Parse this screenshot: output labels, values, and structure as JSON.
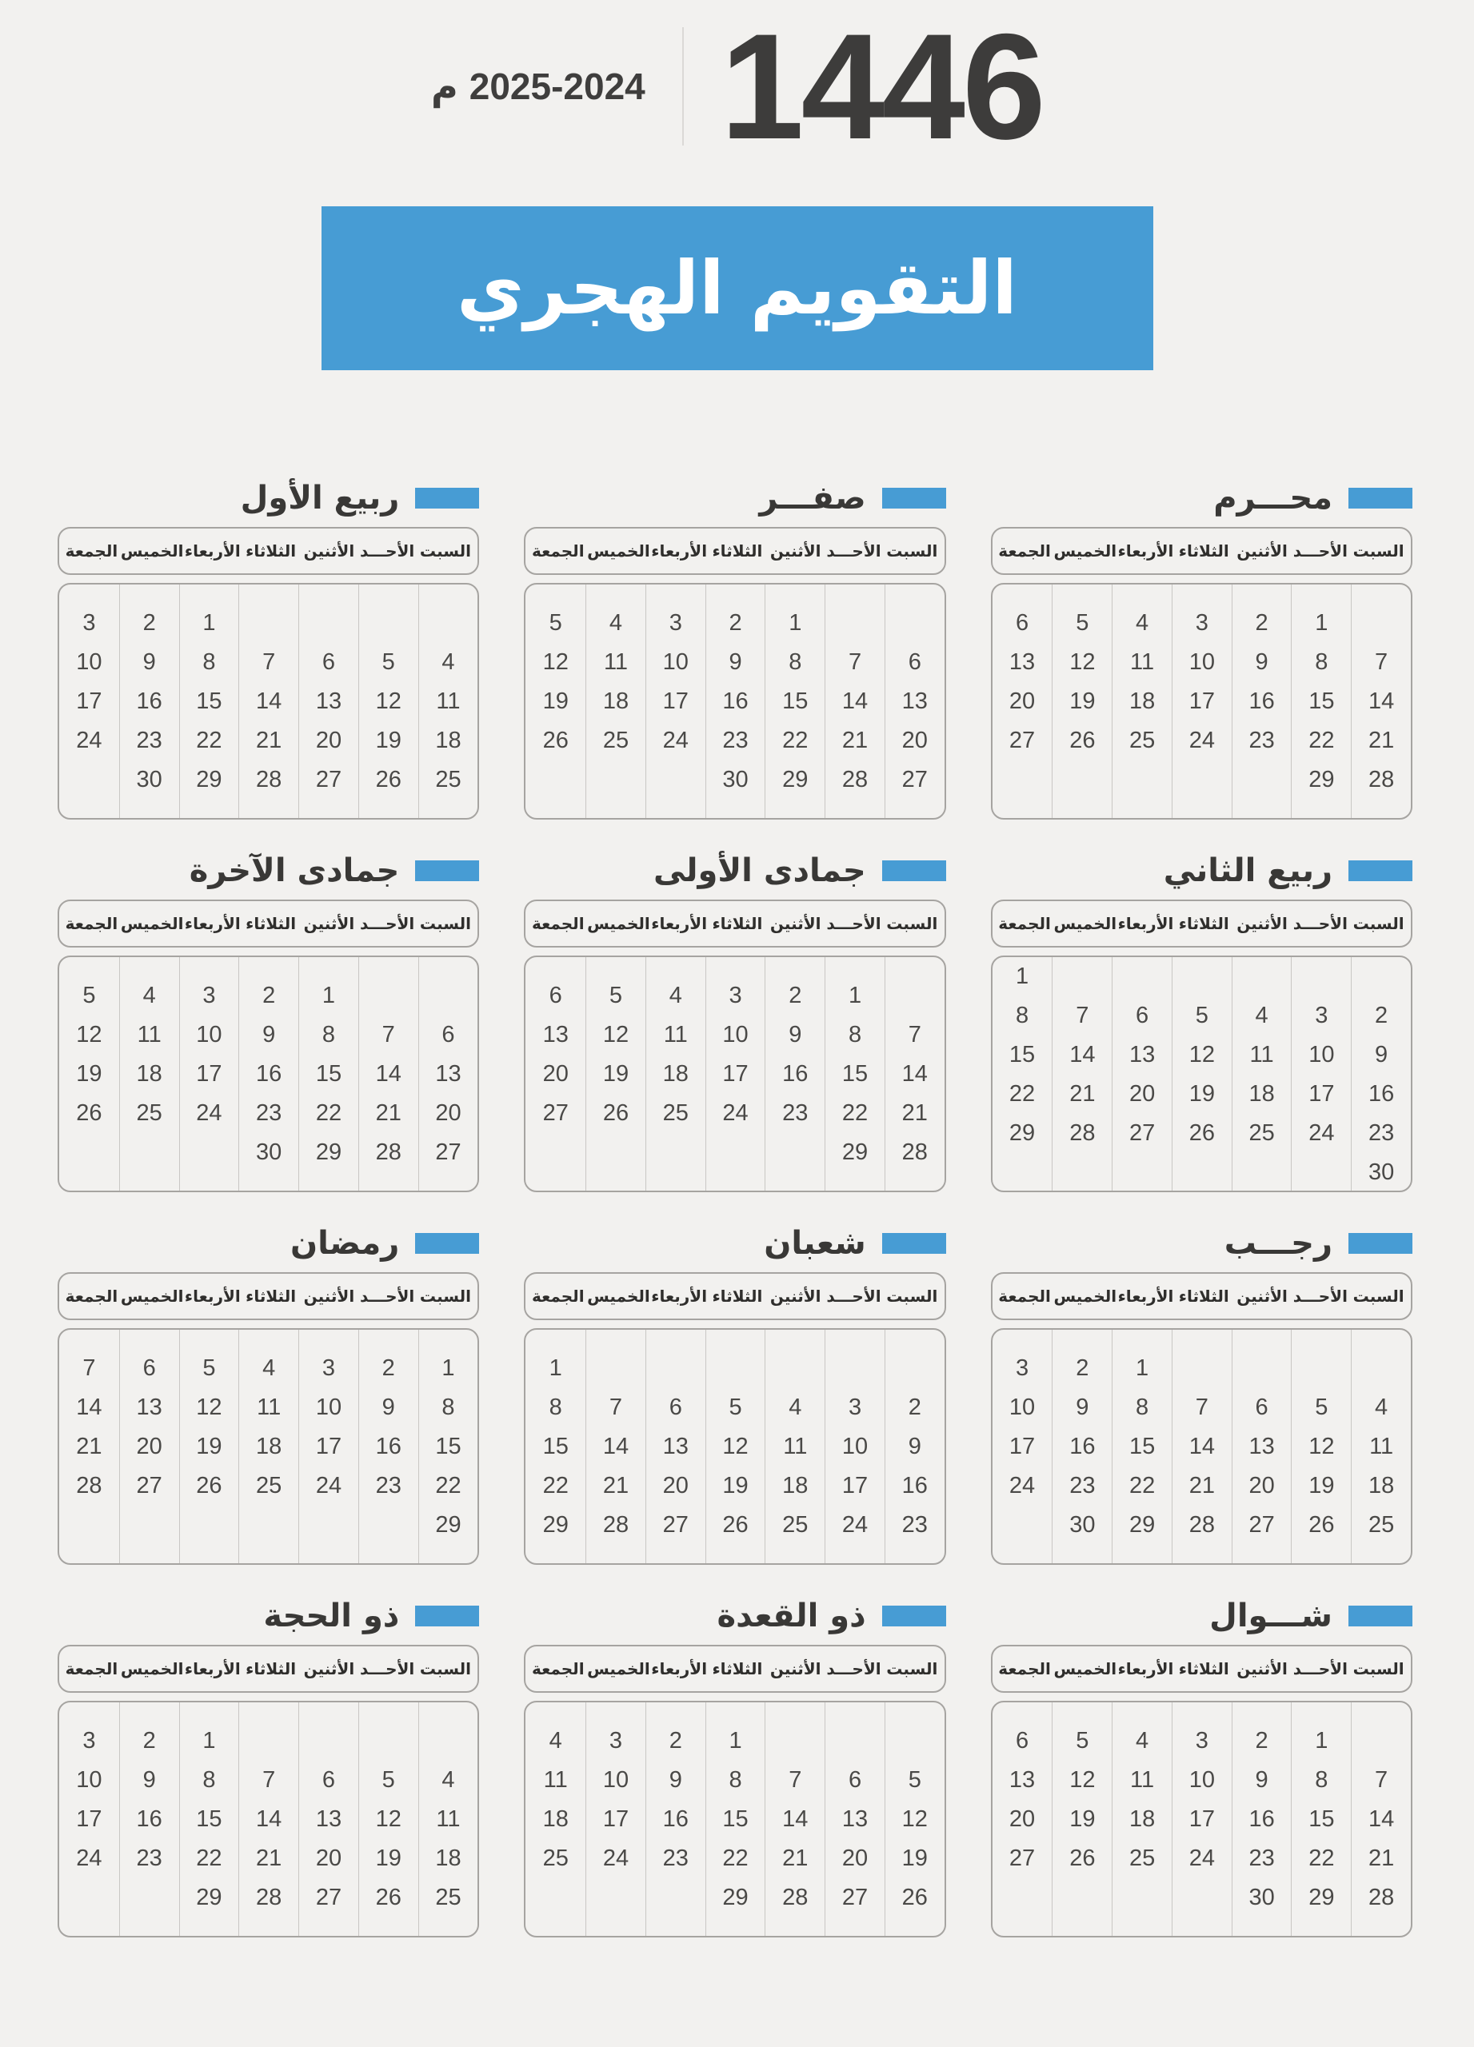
{
  "header": {
    "hijri_year": "1446",
    "gregorian_years": "2025-2024",
    "gregorian_suffix": "م"
  },
  "banner": {
    "title": "التقويم الهجري"
  },
  "colors": {
    "accent_blue": "#479cd4",
    "background": "#f2f1ef",
    "text_dark": "#3d3c3b"
  },
  "weekdays": [
    "السبت",
    "الأحـــد",
    "الأثنين",
    "الثلاثاء",
    "الأربعاء",
    "الخميس",
    "الجمعة"
  ],
  "months": [
    {
      "name": "محـــرم",
      "weeks": [
        [
          "",
          "1",
          "2",
          "3",
          "4",
          "5",
          "6"
        ],
        [
          "7",
          "8",
          "9",
          "10",
          "11",
          "12",
          "13"
        ],
        [
          "14",
          "15",
          "16",
          "17",
          "18",
          "19",
          "20"
        ],
        [
          "21",
          "22",
          "23",
          "24",
          "25",
          "26",
          "27"
        ],
        [
          "28",
          "29",
          "",
          "",
          "",
          "",
          ""
        ]
      ]
    },
    {
      "name": "صفـــر",
      "weeks": [
        [
          "",
          "",
          "1",
          "2",
          "3",
          "4",
          "5"
        ],
        [
          "6",
          "7",
          "8",
          "9",
          "10",
          "11",
          "12"
        ],
        [
          "13",
          "14",
          "15",
          "16",
          "17",
          "18",
          "19"
        ],
        [
          "20",
          "21",
          "22",
          "23",
          "24",
          "25",
          "26"
        ],
        [
          "27",
          "28",
          "29",
          "30",
          "",
          "",
          ""
        ]
      ]
    },
    {
      "name": "ربيع الأول",
      "weeks": [
        [
          "",
          "",
          "",
          "",
          "1",
          "2",
          "3"
        ],
        [
          "4",
          "5",
          "6",
          "7",
          "8",
          "9",
          "10"
        ],
        [
          "11",
          "12",
          "13",
          "14",
          "15",
          "16",
          "17"
        ],
        [
          "18",
          "19",
          "20",
          "21",
          "22",
          "23",
          "24"
        ],
        [
          "25",
          "26",
          "27",
          "28",
          "29",
          "30",
          ""
        ]
      ]
    },
    {
      "name": "ربيع الثاني",
      "weeks": [
        [
          "",
          "",
          "",
          "",
          "",
          "",
          "1"
        ],
        [
          "2",
          "3",
          "4",
          "5",
          "6",
          "7",
          "8"
        ],
        [
          "9",
          "10",
          "11",
          "12",
          "13",
          "14",
          "15"
        ],
        [
          "16",
          "17",
          "18",
          "19",
          "20",
          "21",
          "22"
        ],
        [
          "23",
          "24",
          "25",
          "26",
          "27",
          "28",
          "29"
        ],
        [
          "30",
          "",
          "",
          "",
          "",
          "",
          ""
        ]
      ]
    },
    {
      "name": "جمادى الأولى",
      "weeks": [
        [
          "",
          "1",
          "2",
          "3",
          "4",
          "5",
          "6"
        ],
        [
          "7",
          "8",
          "9",
          "10",
          "11",
          "12",
          "13"
        ],
        [
          "14",
          "15",
          "16",
          "17",
          "18",
          "19",
          "20"
        ],
        [
          "21",
          "22",
          "23",
          "24",
          "25",
          "26",
          "27"
        ],
        [
          "28",
          "29",
          "",
          "",
          "",
          "",
          ""
        ]
      ]
    },
    {
      "name": "جمادى الآخرة",
      "weeks": [
        [
          "",
          "",
          "1",
          "2",
          "3",
          "4",
          "5"
        ],
        [
          "6",
          "7",
          "8",
          "9",
          "10",
          "11",
          "12"
        ],
        [
          "13",
          "14",
          "15",
          "16",
          "17",
          "18",
          "19"
        ],
        [
          "20",
          "21",
          "22",
          "23",
          "24",
          "25",
          "26"
        ],
        [
          "27",
          "28",
          "29",
          "30",
          "",
          "",
          ""
        ]
      ]
    },
    {
      "name": "رجـــب",
      "weeks": [
        [
          "",
          "",
          "",
          "",
          "1",
          "2",
          "3"
        ],
        [
          "4",
          "5",
          "6",
          "7",
          "8",
          "9",
          "10"
        ],
        [
          "11",
          "12",
          "13",
          "14",
          "15",
          "16",
          "17"
        ],
        [
          "18",
          "19",
          "20",
          "21",
          "22",
          "23",
          "24"
        ],
        [
          "25",
          "26",
          "27",
          "28",
          "29",
          "30",
          ""
        ]
      ]
    },
    {
      "name": "شعبان",
      "weeks": [
        [
          "",
          "",
          "",
          "",
          "",
          "",
          "1"
        ],
        [
          "2",
          "3",
          "4",
          "5",
          "6",
          "7",
          "8"
        ],
        [
          "9",
          "10",
          "11",
          "12",
          "13",
          "14",
          "15"
        ],
        [
          "16",
          "17",
          "18",
          "19",
          "20",
          "21",
          "22"
        ],
        [
          "23",
          "24",
          "25",
          "26",
          "27",
          "28",
          "29"
        ]
      ]
    },
    {
      "name": "رمضان",
      "weeks": [
        [
          "1",
          "2",
          "3",
          "4",
          "5",
          "6",
          "7"
        ],
        [
          "8",
          "9",
          "10",
          "11",
          "12",
          "13",
          "14"
        ],
        [
          "15",
          "16",
          "17",
          "18",
          "19",
          "20",
          "21"
        ],
        [
          "22",
          "23",
          "24",
          "25",
          "26",
          "27",
          "28"
        ],
        [
          "29",
          "",
          "",
          "",
          "",
          "",
          ""
        ]
      ]
    },
    {
      "name": "شـــوال",
      "weeks": [
        [
          "",
          "1",
          "2",
          "3",
          "4",
          "5",
          "6"
        ],
        [
          "7",
          "8",
          "9",
          "10",
          "11",
          "12",
          "13"
        ],
        [
          "14",
          "15",
          "16",
          "17",
          "18",
          "19",
          "20"
        ],
        [
          "21",
          "22",
          "23",
          "24",
          "25",
          "26",
          "27"
        ],
        [
          "28",
          "29",
          "30",
          "",
          "",
          "",
          ""
        ]
      ]
    },
    {
      "name": "ذو القعدة",
      "weeks": [
        [
          "",
          "",
          "",
          "1",
          "2",
          "3",
          "4"
        ],
        [
          "5",
          "6",
          "7",
          "8",
          "9",
          "10",
          "11"
        ],
        [
          "12",
          "13",
          "14",
          "15",
          "16",
          "17",
          "18"
        ],
        [
          "19",
          "20",
          "21",
          "22",
          "23",
          "24",
          "25"
        ],
        [
          "26",
          "27",
          "28",
          "29",
          "",
          "",
          ""
        ]
      ]
    },
    {
      "name": "ذو الحجة",
      "weeks": [
        [
          "",
          "",
          "",
          "",
          "1",
          "2",
          "3"
        ],
        [
          "4",
          "5",
          "6",
          "7",
          "8",
          "9",
          "10"
        ],
        [
          "11",
          "12",
          "13",
          "14",
          "15",
          "16",
          "17"
        ],
        [
          "18",
          "19",
          "20",
          "21",
          "22",
          "23",
          "24"
        ],
        [
          "25",
          "26",
          "27",
          "28",
          "29",
          "",
          ""
        ]
      ]
    }
  ]
}
